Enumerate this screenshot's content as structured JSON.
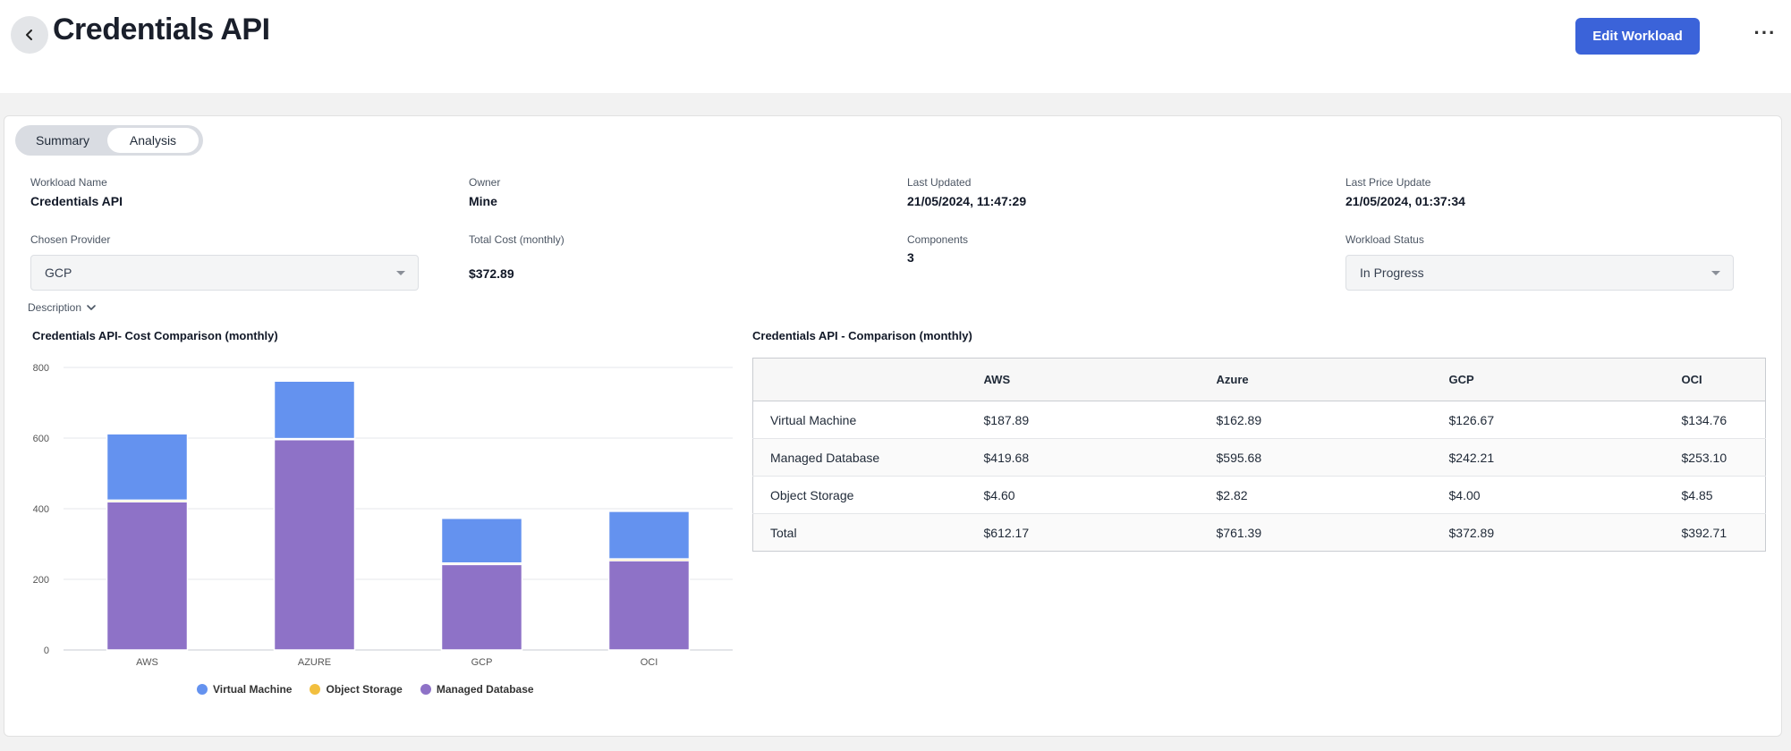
{
  "header": {
    "title": "Credentials API",
    "edit_button": "Edit Workload",
    "more_button": "···"
  },
  "tabs": [
    {
      "label": "Summary",
      "active": false
    },
    {
      "label": "Analysis",
      "active": true
    }
  ],
  "details": {
    "workload_name": {
      "label": "Workload Name",
      "value": "Credentials API"
    },
    "owner": {
      "label": "Owner",
      "value": "Mine"
    },
    "last_updated": {
      "label": "Last Updated",
      "value": "21/05/2024, 11:47:29"
    },
    "last_price_update": {
      "label": "Last Price Update",
      "value": "21/05/2024, 01:37:34"
    },
    "chosen_provider": {
      "label": "Chosen Provider",
      "value": "GCP"
    },
    "total_cost": {
      "label": "Total Cost (monthly)",
      "value": "$372.89"
    },
    "components": {
      "label": "Components",
      "value": "3"
    },
    "workload_status": {
      "label": "Workload Status",
      "value": "In Progress"
    },
    "description_toggle": "Description"
  },
  "chart_data": {
    "type": "bar",
    "stacked": true,
    "title": "Credentials API- Cost Comparison (monthly)",
    "categories": [
      "AWS",
      "AZURE",
      "GCP",
      "OCI"
    ],
    "series": [
      {
        "name": "Managed Database",
        "color": "#8e72c7",
        "values": [
          419.68,
          595.68,
          242.21,
          253.1
        ]
      },
      {
        "name": "Object Storage",
        "color": "#f2bf3f",
        "values": [
          4.6,
          2.82,
          4.0,
          4.85
        ]
      },
      {
        "name": "Virtual Machine",
        "color": "#6492ef",
        "values": [
          187.89,
          162.89,
          126.67,
          134.76
        ]
      }
    ],
    "ylim": [
      0,
      800
    ],
    "yticks": [
      "0",
      "200",
      "400",
      "600",
      "800"
    ],
    "grid": true,
    "legend_position": "bottom",
    "legend": [
      {
        "name": "Virtual Machine",
        "color": "#6492ef"
      },
      {
        "name": "Object Storage",
        "color": "#f2bf3f"
      },
      {
        "name": "Managed Database",
        "color": "#8e72c7"
      }
    ]
  },
  "comparison": {
    "title": "Credentials API - Comparison (monthly)",
    "columns": [
      "",
      "AWS",
      "Azure",
      "GCP",
      "OCI"
    ],
    "rows": [
      [
        "Virtual Machine",
        "$187.89",
        "$162.89",
        "$126.67",
        "$134.76"
      ],
      [
        "Managed Database",
        "$419.68",
        "$595.68",
        "$242.21",
        "$253.10"
      ],
      [
        "Object Storage",
        "$4.60",
        "$2.82",
        "$4.00",
        "$4.85"
      ],
      [
        "Total",
        "$612.17",
        "$761.39",
        "$372.89",
        "$392.71"
      ]
    ]
  }
}
